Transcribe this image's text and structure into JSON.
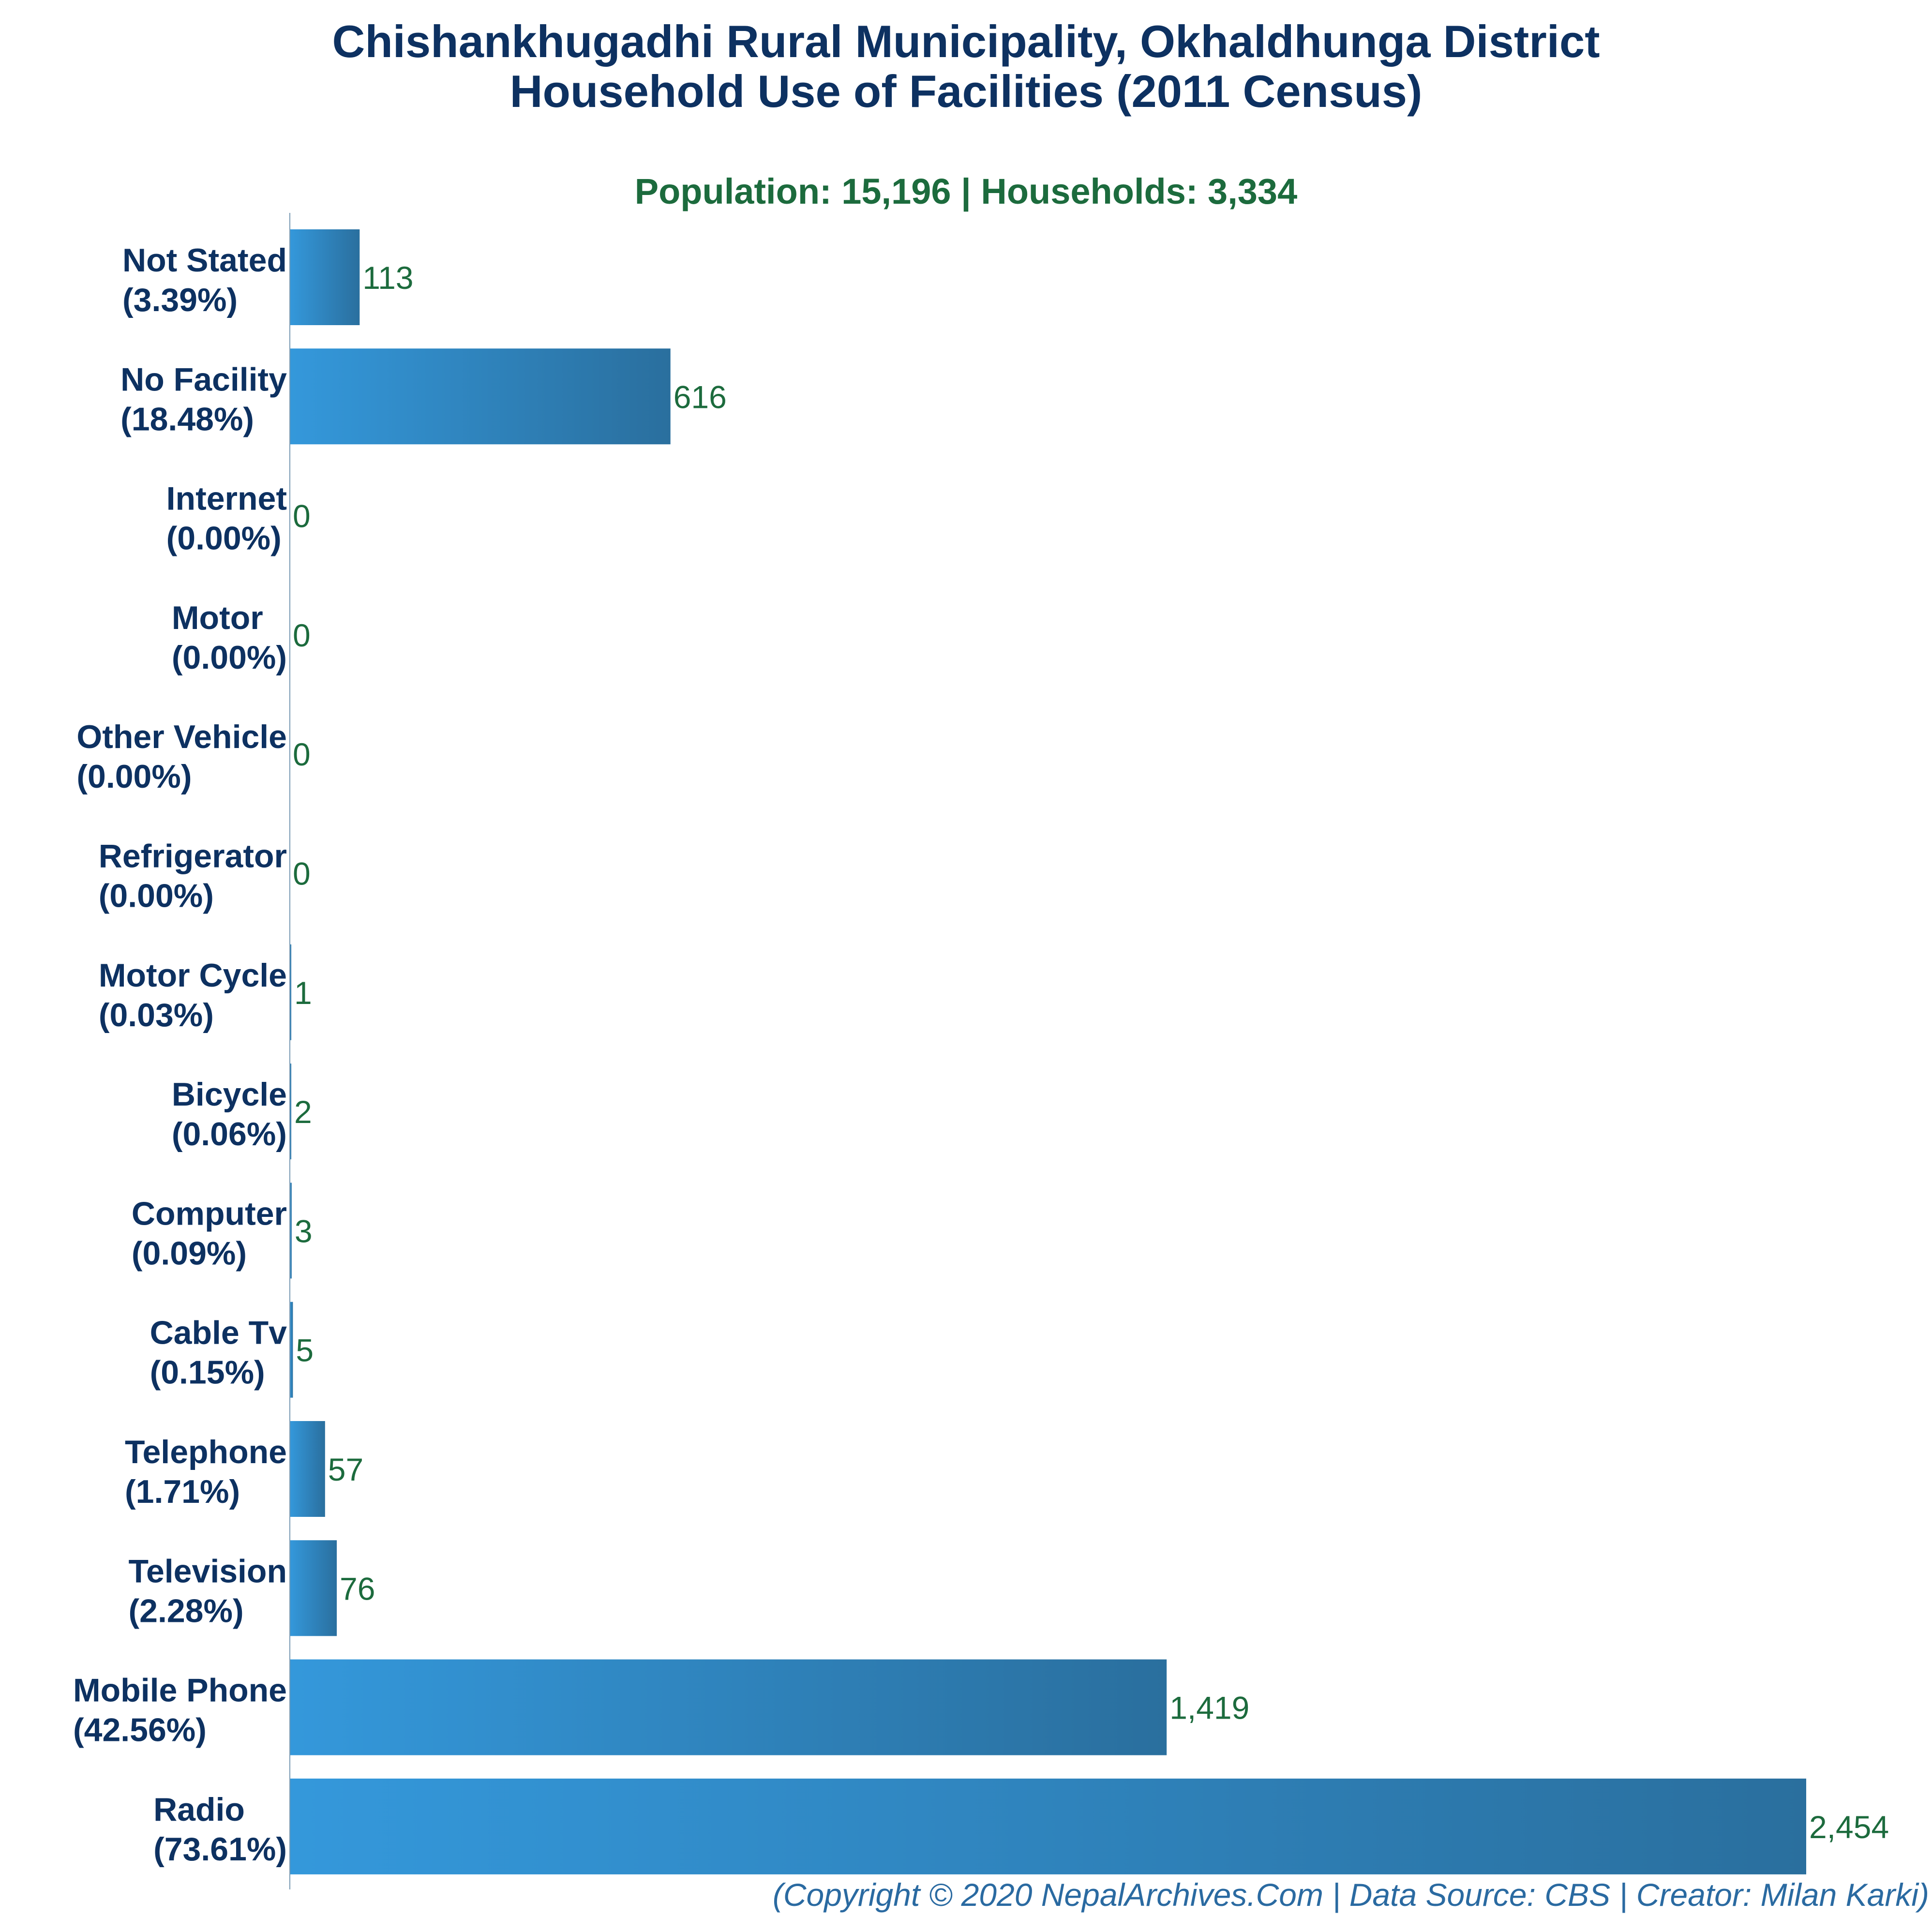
{
  "title_line1": "Chishankhugadhi Rural Municipality, Okhaldhunga District",
  "title_line2": "Household Use of Facilities (2011 Census)",
  "subtitle": "Population: 15,196 | Households: 3,334",
  "footer": "(Copyright © 2020 NepalArchives.Com | Data Source: CBS | Creator: Milan Karki)",
  "colors": {
    "title": "#0d3161",
    "value_label": "#1c6b3d",
    "bar_light": "#3498db",
    "bar_dark": "#2a6f9e",
    "axis": "#7a9ab3"
  },
  "chart_data": {
    "type": "bar",
    "orientation": "horizontal",
    "categories": [
      "Not Stated",
      "No Facility",
      "Internet",
      "Motor",
      "Other Vehicle",
      "Refrigerator",
      "Motor Cycle",
      "Bicycle",
      "Computer",
      "Cable Tv",
      "Telephone",
      "Television",
      "Mobile Phone",
      "Radio"
    ],
    "percent_labels": [
      "(3.39%)",
      "(18.48%)",
      "(0.00%)",
      "(0.00%)",
      "(0.00%)",
      "(0.00%)",
      "(0.03%)",
      "(0.06%)",
      "(0.09%)",
      "(0.15%)",
      "(1.71%)",
      "(2.28%)",
      "(42.56%)",
      "(73.61%)"
    ],
    "values": [
      113,
      616,
      0,
      0,
      0,
      0,
      1,
      2,
      3,
      5,
      57,
      76,
      1419,
      2454
    ],
    "value_labels": [
      "113",
      "616",
      "0",
      "0",
      "0",
      "0",
      "1",
      "2",
      "3",
      "5",
      "57",
      "76",
      "1,419",
      "2,454"
    ],
    "xlim": [
      0,
      2454
    ],
    "grid": false,
    "legend": "none"
  }
}
